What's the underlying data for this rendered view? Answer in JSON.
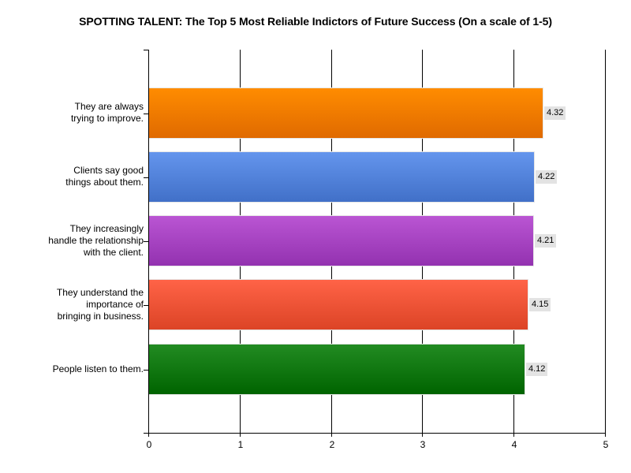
{
  "chart_data": {
    "type": "bar",
    "orientation": "horizontal",
    "title": "SPOTTING TALENT: The Top 5 Most Reliable Indictors of Future Success (On a scale of 1-5)",
    "xlabel": "",
    "ylabel": "",
    "xlim": [
      0,
      5
    ],
    "x_ticks": [
      "0",
      "1",
      "2",
      "3",
      "4",
      "5"
    ],
    "grid": "vertical",
    "legend": "none",
    "categories": [
      "They are always trying to improve.",
      "Clients say good things about them.",
      "They increasingly handle the relationship with the client.",
      "They understand the importance of bringing in business.",
      "People listen to them."
    ],
    "category_lines": [
      [
        "They are always",
        "trying to improve."
      ],
      [
        "Clients say good",
        "things about them."
      ],
      [
        "They increasingly",
        "handle the relationship",
        "with the client."
      ],
      [
        "They understand the",
        "importance of",
        "bringing in business."
      ],
      [
        "People listen to them."
      ]
    ],
    "values": [
      4.32,
      4.22,
      4.21,
      4.15,
      4.12
    ],
    "value_labels": [
      "4.32",
      "4.22",
      "4.21",
      "4.15",
      "4.12"
    ],
    "colors": [
      {
        "top": "#ff8c00",
        "bottom": "#e06a00"
      },
      {
        "top": "#6495ed",
        "bottom": "#4170c8"
      },
      {
        "top": "#ba55d3",
        "bottom": "#9332b0"
      },
      {
        "top": "#ff6347",
        "bottom": "#dc4426"
      },
      {
        "top": "#228b22",
        "bottom": "#006400"
      }
    ]
  }
}
